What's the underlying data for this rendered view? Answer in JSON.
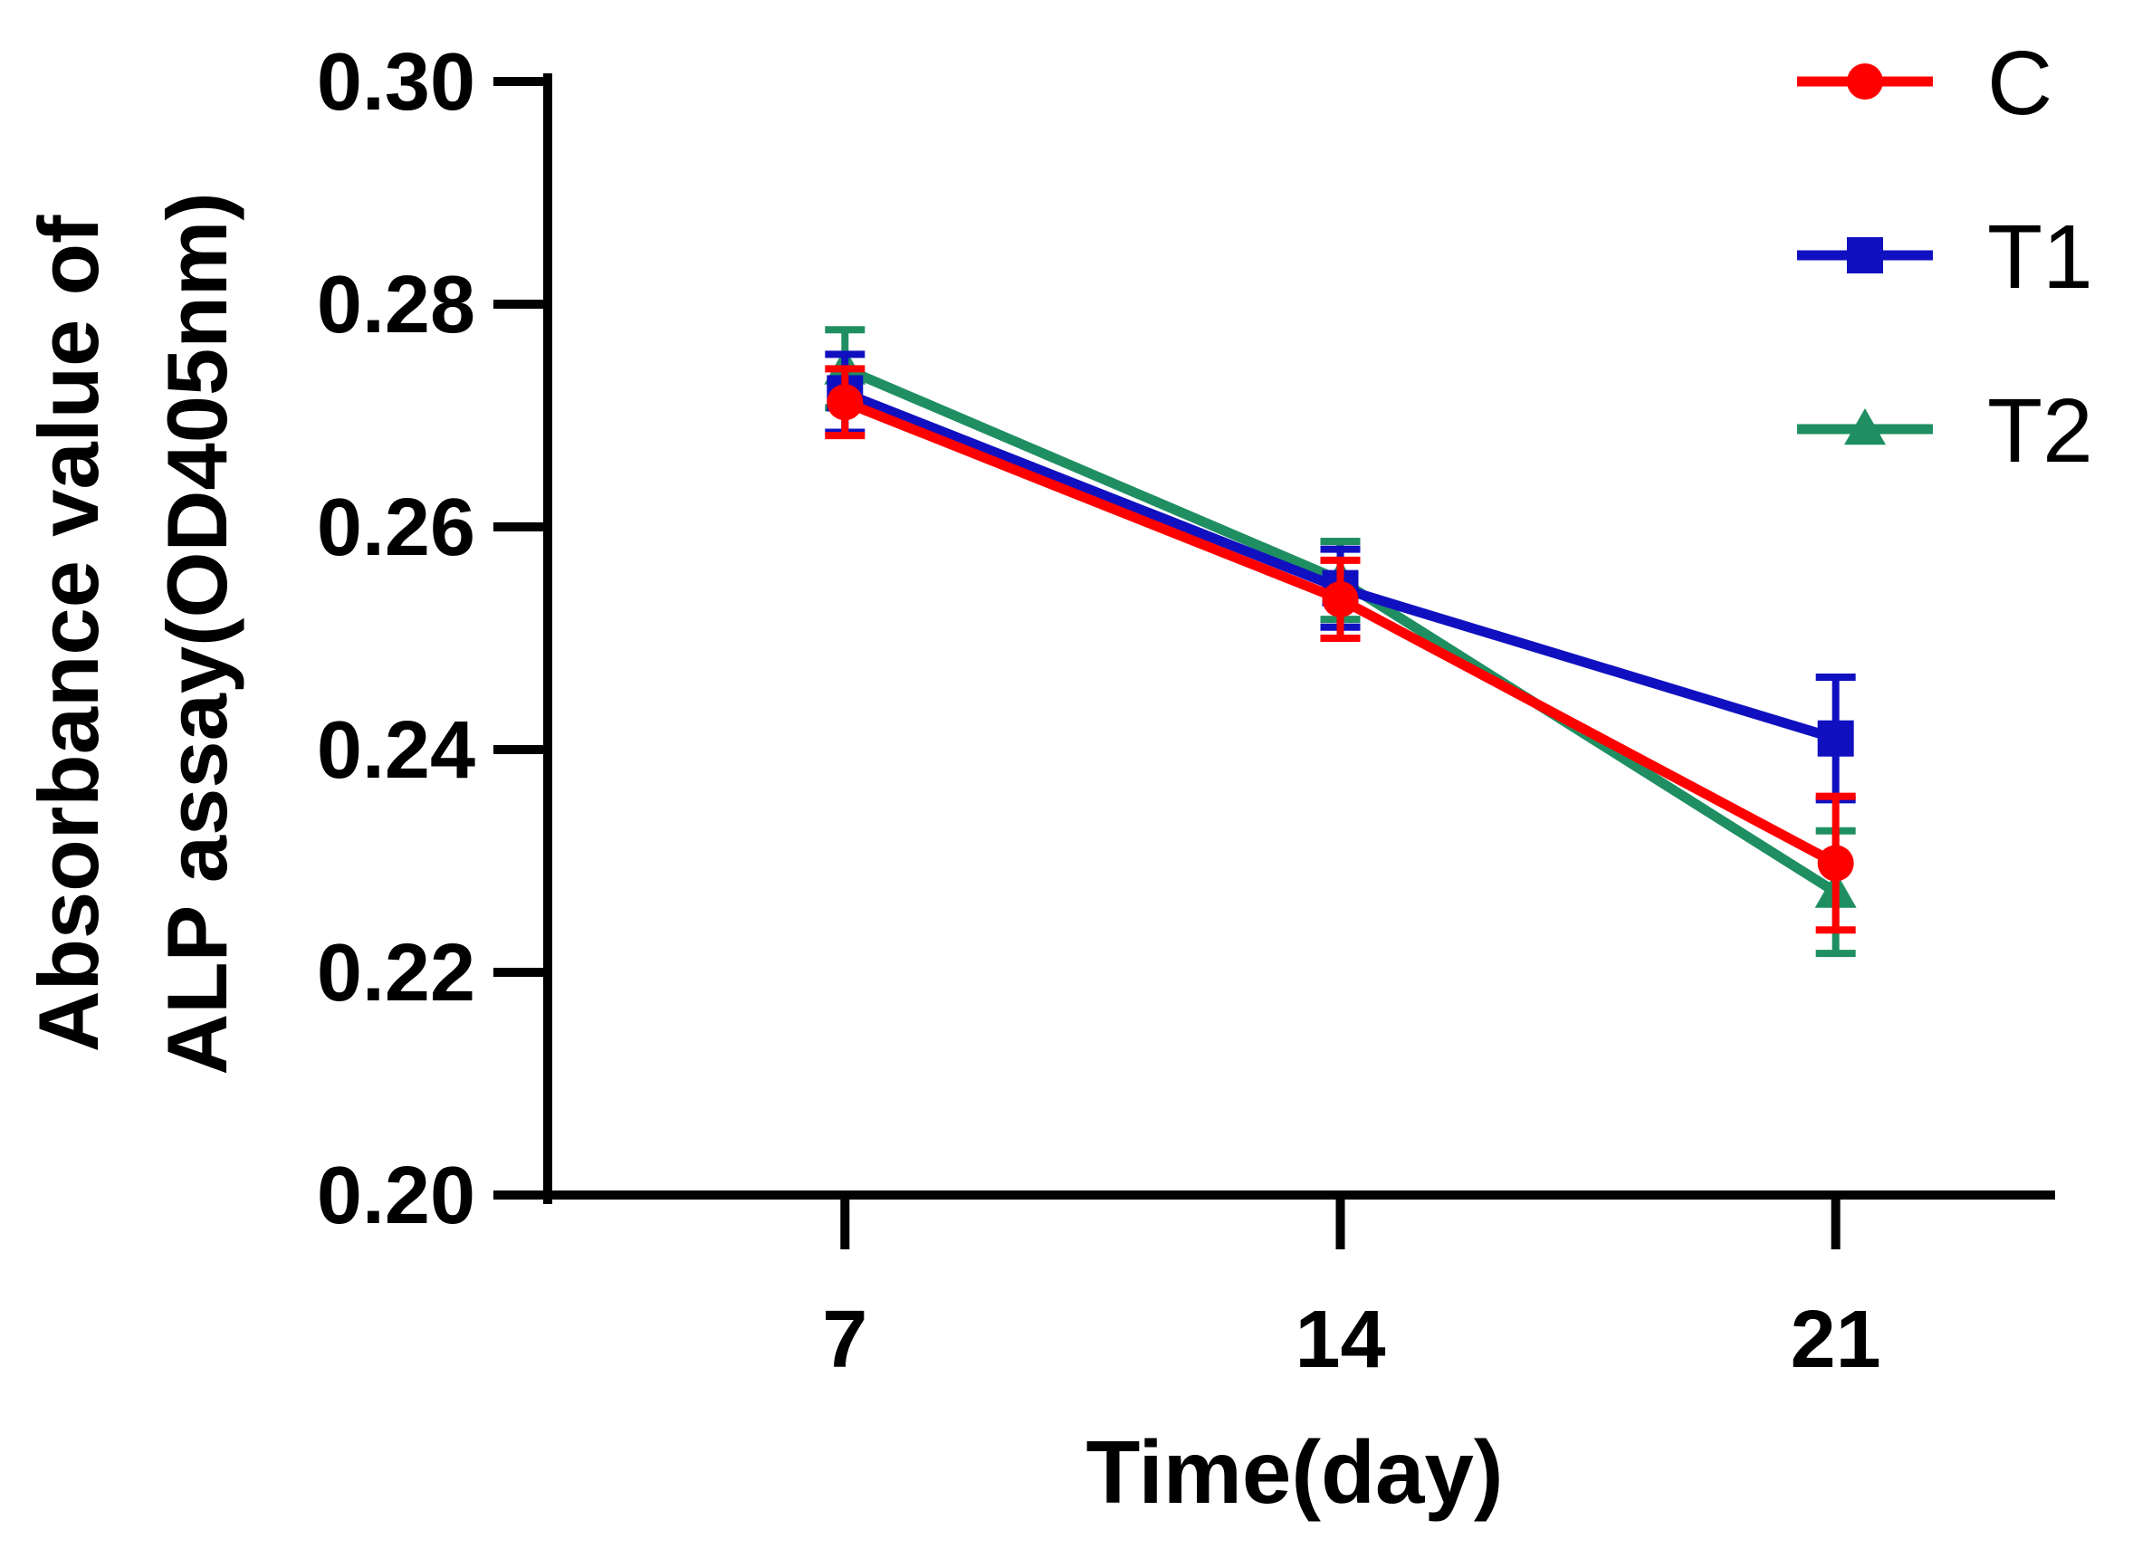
{
  "chart_data": {
    "type": "line",
    "title": "",
    "xlabel": "Time(day)",
    "ylabel_line1": "Absorbance value of",
    "ylabel_line2": "ALP assay(OD405nm)",
    "x": [
      7,
      14,
      21
    ],
    "x_tick_labels": [
      "7",
      "14",
      "21"
    ],
    "xlim": [
      2.8,
      24.1
    ],
    "ylim": [
      0.2,
      0.3
    ],
    "y_ticks": [
      0.2,
      0.22,
      0.24,
      0.26,
      0.28,
      0.3
    ],
    "y_tick_labels": [
      "0.20",
      "0.22",
      "0.24",
      "0.26",
      "0.28",
      "0.30"
    ],
    "grid": false,
    "legend_position": "top-right",
    "series": [
      {
        "name": "C",
        "marker": "circle",
        "color": "#ff0000",
        "values": [
          0.2712,
          0.2535,
          0.2298
        ],
        "errors": [
          0.003,
          0.0035,
          0.006
        ]
      },
      {
        "name": "T1",
        "marker": "square",
        "color": "#1010c0",
        "values": [
          0.272,
          0.2545,
          0.241
        ],
        "errors": [
          0.0035,
          0.0035,
          0.0055
        ]
      },
      {
        "name": "T2",
        "marker": "triangle",
        "color": "#1f8f62",
        "values": [
          0.2742,
          0.2552,
          0.2272
        ],
        "errors": [
          0.0035,
          0.0035,
          0.0055
        ]
      }
    ]
  }
}
